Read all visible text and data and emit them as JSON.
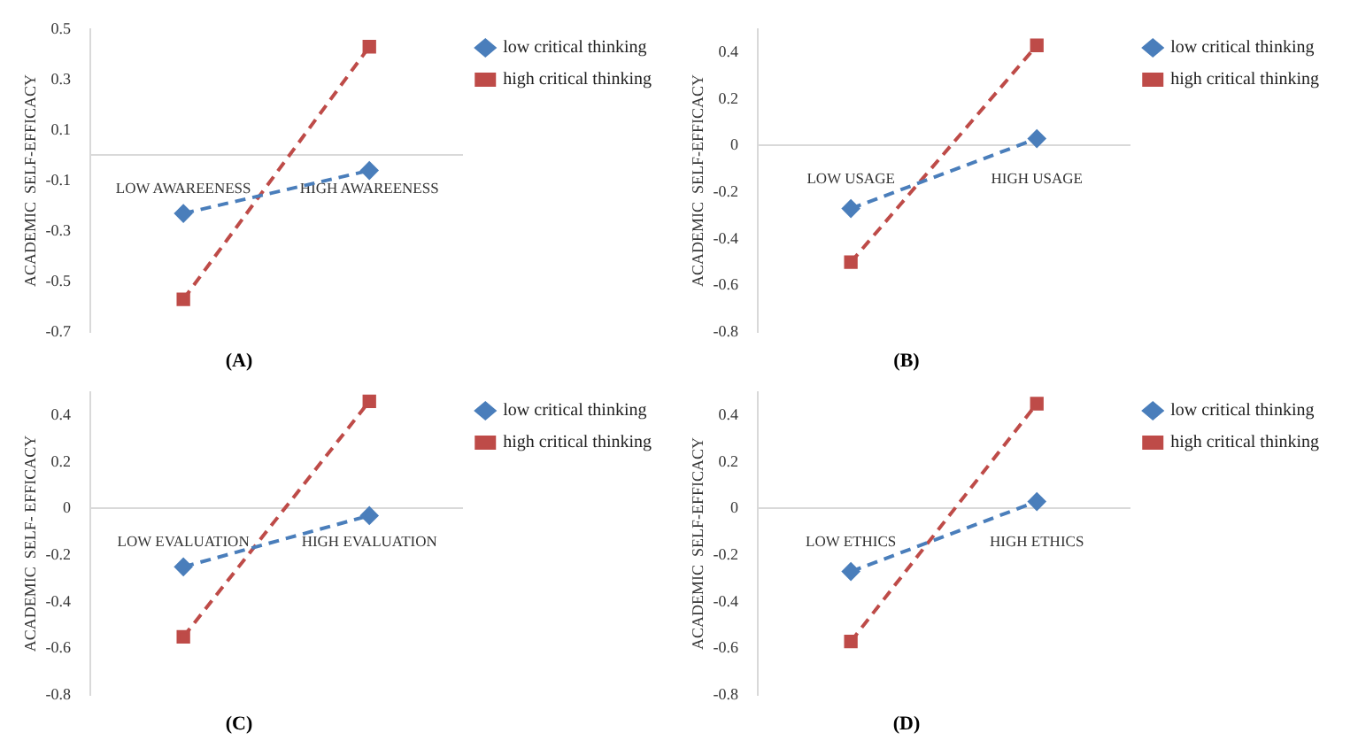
{
  "chart_data": [
    {
      "type": "line",
      "xlabel": "(A)",
      "ylabel": "ACADEMIC  SELF-EFFICACY",
      "categories": [
        "LOW AWAREENESS",
        "HIGH AWAREENESS"
      ],
      "ylim": [
        -0.7,
        0.5
      ],
      "yticks": [
        -0.7,
        -0.5,
        -0.3,
        -0.1,
        0.1,
        0.3,
        0.5
      ],
      "legend": "top right",
      "line_style": "dashed",
      "series": [
        {
          "name": "low critical thinking",
          "color": "#4a7ebb",
          "marker": "diamond",
          "values": [
            -0.23,
            -0.06
          ]
        },
        {
          "name": "high critical thinking",
          "color": "#be4b48",
          "marker": "square",
          "values": [
            -0.57,
            0.43
          ]
        }
      ]
    },
    {
      "type": "line",
      "xlabel": "(B)",
      "ylabel": "ACADEMIC  SELF-EFFICACY",
      "categories": [
        "LOW USAGE",
        "HIGH USAGE"
      ],
      "ylim": [
        -0.8,
        0.5
      ],
      "yticks": [
        -0.8,
        -0.6,
        -0.4,
        -0.2,
        0,
        0.2,
        0.4
      ],
      "legend": "top right",
      "line_style": "dashed",
      "series": [
        {
          "name": "low critical thinking",
          "color": "#4a7ebb",
          "marker": "diamond",
          "values": [
            -0.27,
            0.03
          ]
        },
        {
          "name": "high critical thinking",
          "color": "#be4b48",
          "marker": "square",
          "values": [
            -0.5,
            0.43
          ]
        }
      ]
    },
    {
      "type": "line",
      "xlabel": "(C)",
      "ylabel": "ACADEMIC  SELF- EFFICACY",
      "categories": [
        "LOW EVALUATION",
        "HIGH EVALUATION"
      ],
      "ylim": [
        -0.8,
        0.5
      ],
      "yticks": [
        -0.8,
        -0.6,
        -0.4,
        -0.2,
        0,
        0.2,
        0.4
      ],
      "legend": "top right",
      "line_style": "dashed",
      "series": [
        {
          "name": "low critical thinking",
          "color": "#4a7ebb",
          "marker": "diamond",
          "values": [
            -0.25,
            -0.03
          ]
        },
        {
          "name": "high critical thinking",
          "color": "#be4b48",
          "marker": "square",
          "values": [
            -0.55,
            0.46
          ]
        }
      ]
    },
    {
      "type": "line",
      "xlabel": "(D)",
      "ylabel": "ACADEMIC  SELF-EFFICACY",
      "categories": [
        "LOW ETHICS",
        "HIGH ETHICS"
      ],
      "ylim": [
        -0.8,
        0.5
      ],
      "yticks": [
        -0.8,
        -0.6,
        -0.4,
        -0.2,
        0,
        0.2,
        0.4
      ],
      "legend": "top right",
      "line_style": "dashed",
      "series": [
        {
          "name": "low critical thinking",
          "color": "#4a7ebb",
          "marker": "diamond",
          "values": [
            -0.27,
            0.03
          ]
        },
        {
          "name": "high critical thinking",
          "color": "#be4b48",
          "marker": "square",
          "values": [
            -0.57,
            0.45
          ]
        }
      ]
    }
  ]
}
